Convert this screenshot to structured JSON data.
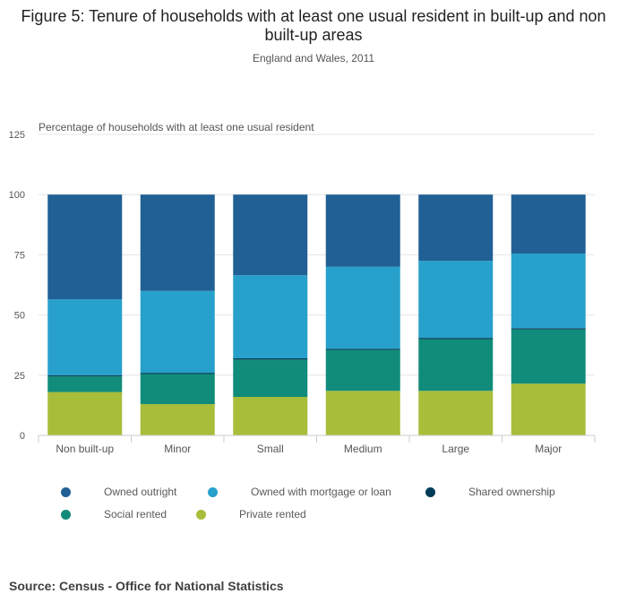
{
  "header": {
    "title": "Figure 5: Tenure of households with at least one usual resident in built-up and non built-up areas",
    "subtitle": "England and Wales, 2011"
  },
  "chart_data": {
    "type": "bar",
    "stacked": true,
    "ylabel": "Percentage of households with at least one usual resident",
    "xlabel": "",
    "ylim": [
      0,
      125
    ],
    "yticks": [
      0,
      25,
      50,
      75,
      100,
      125
    ],
    "grid": true,
    "legend_position": "bottom",
    "categories": [
      "Non built-up",
      "Minor",
      "Small",
      "Medium",
      "Large",
      "Major"
    ],
    "series": [
      {
        "name": "Private rented",
        "color": "#a8bd3a",
        "values": [
          18,
          13,
          16,
          18.5,
          18.5,
          21.5
        ]
      },
      {
        "name": "Social rented",
        "color": "#118c7b",
        "values": [
          6.5,
          12.5,
          15.5,
          17,
          21.5,
          22.5
        ]
      },
      {
        "name": "Shared ownership",
        "color": "#003c57",
        "values": [
          0.5,
          0.5,
          0.5,
          0.5,
          0.5,
          0.5
        ]
      },
      {
        "name": "Owned with mortgage or loan",
        "color": "#27a0cc",
        "values": [
          31.5,
          34,
          34.5,
          34,
          32,
          31
        ]
      },
      {
        "name": "Owned outright",
        "color": "#206095",
        "values": [
          43.5,
          40,
          33.5,
          30,
          27.5,
          24.5
        ]
      }
    ]
  },
  "legend": {
    "items": [
      {
        "label": "Owned outright",
        "color": "#206095",
        "icon": "circle"
      },
      {
        "label": "Owned with mortgage or loan",
        "color": "#27a0cc",
        "icon": "circle"
      },
      {
        "label": "Shared ownership",
        "color": "#003c57",
        "icon": "circle"
      },
      {
        "label": "Social rented",
        "color": "#118c7b",
        "icon": "circle"
      },
      {
        "label": "Private rented",
        "color": "#a8bd3a",
        "icon": "circle"
      }
    ]
  },
  "footer": {
    "source": "Source: Census - Office for National Statistics"
  }
}
